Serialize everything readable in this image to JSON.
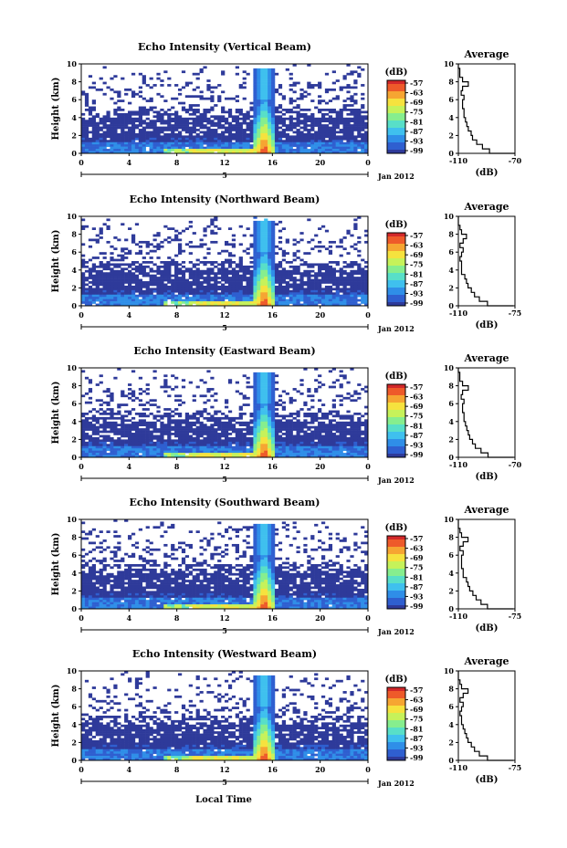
{
  "figure": {
    "xlabel": "Local Time",
    "date_label": "Jan 2012",
    "day_marker": "5",
    "cbar_unit": "(dB)",
    "profile_title": "Average",
    "profile_xlabel": "(dB)"
  },
  "colors": {
    "background_echo": "#2e3a9a",
    "colormap": [
      "#2e3a9a",
      "#2f5fd0",
      "#2f8ee8",
      "#3fc0ee",
      "#58dfc8",
      "#86ee8e",
      "#c6f25a",
      "#f6e23e",
      "#f6a532",
      "#ee5a2a",
      "#d2282a"
    ]
  },
  "chart_data": [
    {
      "type": "heatmap",
      "title": "Echo Intensity (Vertical Beam)",
      "ylabel": "Height (km)",
      "x_ticks": [
        "0",
        "4",
        "8",
        "12",
        "16",
        "20",
        "0"
      ],
      "y_ticks": [
        "0",
        "2",
        "4",
        "6",
        "8",
        "10"
      ],
      "xlim": [
        0,
        24
      ],
      "ylim": [
        0,
        10
      ],
      "colorbar": {
        "ticks": [
          "-57",
          "-63",
          "-69",
          "-75",
          "-81",
          "-87",
          "-93",
          "-99"
        ]
      },
      "profile": {
        "xlim": [
          -110,
          -70
        ],
        "x_ticks": [
          "-110",
          "-70"
        ],
        "y_ticks": [
          "0",
          "2",
          "4",
          "6",
          "8",
          "10"
        ],
        "height_km": [
          0,
          0.5,
          1,
          1.5,
          2,
          2.5,
          3,
          3.5,
          4,
          4.5,
          5,
          5.5,
          6,
          6.5,
          7,
          7.5,
          8,
          8.5,
          9,
          9.5,
          10
        ],
        "echo_dB": [
          -70,
          -88,
          -93,
          -97,
          -100,
          -101,
          -103,
          -104,
          -105,
          -106,
          -106,
          -107,
          -107,
          -106,
          -108,
          -107,
          -103,
          -107,
          -109,
          -109,
          -110
        ]
      }
    },
    {
      "type": "heatmap",
      "title": "Echo Intensity (Northward Beam)",
      "ylabel": "Height (km)",
      "x_ticks": [
        "0",
        "4",
        "8",
        "12",
        "16",
        "20",
        "0"
      ],
      "y_ticks": [
        "0",
        "2",
        "4",
        "6",
        "8",
        "10"
      ],
      "xlim": [
        0,
        24
      ],
      "ylim": [
        0,
        10
      ],
      "colorbar": {
        "ticks": [
          "-57",
          "-63",
          "-69",
          "-75",
          "-81",
          "-87",
          "-93",
          "-99"
        ]
      },
      "profile": {
        "xlim": [
          -110,
          -75
        ],
        "x_ticks": [
          "-110",
          "-75"
        ],
        "y_ticks": [
          "0",
          "2",
          "4",
          "6",
          "8",
          "10"
        ],
        "height_km": [
          0,
          0.5,
          1,
          1.5,
          2,
          2.5,
          3,
          3.5,
          4,
          4.5,
          5,
          5.5,
          6,
          6.5,
          7,
          7.5,
          8,
          8.5,
          9,
          9.5,
          10
        ],
        "echo_dB": [
          -76,
          -92,
          -97,
          -100,
          -102,
          -104,
          -105,
          -106,
          -108,
          -108,
          -108,
          -109,
          -108,
          -107,
          -109,
          -107,
          -105,
          -108,
          -109,
          -110,
          -110
        ]
      }
    },
    {
      "type": "heatmap",
      "title": "Echo Intensity (Eastward Beam)",
      "ylabel": "Height (km)",
      "x_ticks": [
        "0",
        "4",
        "8",
        "12",
        "16",
        "20",
        "0"
      ],
      "y_ticks": [
        "0",
        "2",
        "4",
        "6",
        "8",
        "10"
      ],
      "xlim": [
        0,
        24
      ],
      "ylim": [
        0,
        10
      ],
      "colorbar": {
        "ticks": [
          "-57",
          "-63",
          "-69",
          "-75",
          "-81",
          "-87",
          "-93",
          "-99"
        ]
      },
      "profile": {
        "xlim": [
          -110,
          -70
        ],
        "x_ticks": [
          "-110",
          "-70"
        ],
        "y_ticks": [
          "0",
          "2",
          "4",
          "6",
          "8",
          "10"
        ],
        "height_km": [
          0,
          0.5,
          1,
          1.5,
          2,
          2.5,
          3,
          3.5,
          4,
          4.5,
          5,
          5.5,
          6,
          6.5,
          7,
          7.5,
          8,
          8.5,
          9,
          9.5,
          10
        ],
        "echo_dB": [
          -71,
          -89,
          -94,
          -98,
          -100,
          -102,
          -103,
          -104,
          -105,
          -106,
          -106,
          -107,
          -107,
          -106,
          -108,
          -107,
          -103,
          -107,
          -109,
          -109,
          -110
        ]
      }
    },
    {
      "type": "heatmap",
      "title": "Echo Intensity (Southward Beam)",
      "ylabel": "Height (km)",
      "x_ticks": [
        "0",
        "4",
        "8",
        "12",
        "16",
        "20",
        "0"
      ],
      "y_ticks": [
        "0",
        "2",
        "4",
        "6",
        "8",
        "10"
      ],
      "xlim": [
        0,
        24
      ],
      "ylim": [
        0,
        10
      ],
      "colorbar": {
        "ticks": [
          "-57",
          "-63",
          "-69",
          "-75",
          "-81",
          "-87",
          "-93",
          "-99"
        ]
      },
      "profile": {
        "xlim": [
          -110,
          -75
        ],
        "x_ticks": [
          "-110",
          "-75"
        ],
        "y_ticks": [
          "0",
          "2",
          "4",
          "6",
          "8",
          "10"
        ],
        "height_km": [
          0,
          0.5,
          1,
          1.5,
          2,
          2.5,
          3,
          3.5,
          4,
          4.5,
          5,
          5.5,
          6,
          6.5,
          7,
          7.5,
          8,
          8.5,
          9,
          9.5,
          10
        ],
        "echo_dB": [
          -76,
          -92,
          -96,
          -99,
          -101,
          -103,
          -104,
          -105,
          -107,
          -107,
          -108,
          -108,
          -108,
          -107,
          -109,
          -107,
          -104,
          -108,
          -109,
          -110,
          -110
        ]
      }
    },
    {
      "type": "heatmap",
      "title": "Echo Intensity (Westward Beam)",
      "ylabel": "Height (km)",
      "x_ticks": [
        "0",
        "4",
        "8",
        "12",
        "16",
        "20",
        "0"
      ],
      "y_ticks": [
        "0",
        "2",
        "4",
        "6",
        "8",
        "10"
      ],
      "xlim": [
        0,
        24
      ],
      "ylim": [
        0,
        10
      ],
      "colorbar": {
        "ticks": [
          "-57",
          "-63",
          "-69",
          "-75",
          "-81",
          "-87",
          "-93",
          "-99"
        ]
      },
      "profile": {
        "xlim": [
          -110,
          -75
        ],
        "x_ticks": [
          "-110",
          "-75"
        ],
        "y_ticks": [
          "0",
          "2",
          "4",
          "6",
          "8",
          "10"
        ],
        "height_km": [
          0,
          0.5,
          1,
          1.5,
          2,
          2.5,
          3,
          3.5,
          4,
          4.5,
          5,
          5.5,
          6,
          6.5,
          7,
          7.5,
          8,
          8.5,
          9,
          9.5,
          10
        ],
        "echo_dB": [
          -76,
          -92,
          -97,
          -100,
          -102,
          -104,
          -105,
          -106,
          -107,
          -108,
          -108,
          -109,
          -108,
          -107,
          -109,
          -107,
          -104,
          -108,
          -109,
          -110,
          -110
        ]
      }
    }
  ]
}
